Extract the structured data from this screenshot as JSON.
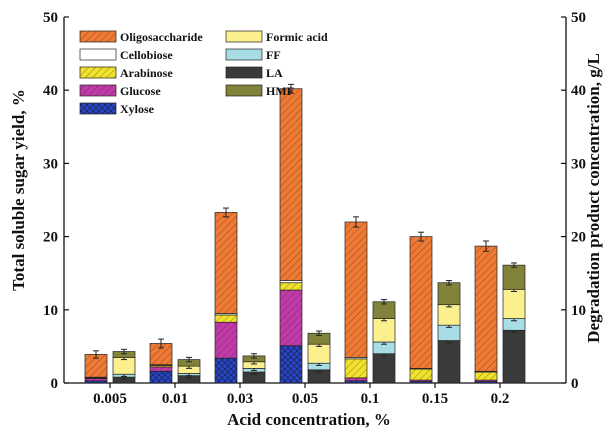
{
  "chart_data": {
    "type": "bar",
    "subtype": "stacked-grouped",
    "xlabel": "Acid concentration, %",
    "ylabel_left": "Total soluble sugar yield, %",
    "ylabel_right": "Degradation product concentration, g/L",
    "ylim_left": [
      0,
      50
    ],
    "ylim_right": [
      0,
      50
    ],
    "y_ticks": [
      "0",
      "10",
      "20",
      "30",
      "40",
      "50"
    ],
    "categories": [
      "0.005",
      "0.01",
      "0.03",
      "0.05",
      "0.1",
      "0.15",
      "0.2"
    ],
    "legend_placement": "top-left",
    "sugar_series": [
      {
        "name": "Xylose",
        "color": "#2846c8",
        "pattern": "crosshatch",
        "values": [
          0.3,
          1.6,
          3.4,
          5.1,
          0.3,
          0.2,
          0.2
        ]
      },
      {
        "name": "Glucose",
        "color": "#c23aa8",
        "pattern": "diagonal",
        "values": [
          0.3,
          0.6,
          4.9,
          7.6,
          0.4,
          0.2,
          0.2
        ]
      },
      {
        "name": "Arabinose",
        "color": "#f2e22b",
        "pattern": "diagonal",
        "values": [
          0.1,
          0.2,
          1.0,
          1.0,
          2.6,
          1.5,
          1.1
        ]
      },
      {
        "name": "Cellobiose",
        "color": "#ffffff",
        "pattern": "none",
        "values": [
          0.1,
          0.1,
          0.2,
          0.3,
          0.2,
          0.1,
          0.1
        ]
      },
      {
        "name": "Oligosaccharide",
        "color": "#f07a33",
        "pattern": "diagonal",
        "values": [
          3.1,
          2.9,
          13.8,
          26.2,
          18.5,
          18.0,
          17.1
        ]
      }
    ],
    "sugar_error": [
      0.5,
      0.6,
      0.6,
      0.6,
      0.7,
      0.6,
      0.7
    ],
    "degradation_series": [
      {
        "name": "LA",
        "color": "#3a3a3a",
        "values": [
          0.8,
          1.0,
          1.5,
          1.8,
          4.0,
          5.8,
          7.2
        ]
      },
      {
        "name": "FF",
        "color": "#a8dde6",
        "values": [
          0.4,
          0.3,
          0.5,
          0.9,
          1.6,
          2.1,
          1.6
        ]
      },
      {
        "name": "Formic acid",
        "color": "#fbef8e",
        "values": [
          2.3,
          1.0,
          0.9,
          2.6,
          3.2,
          2.8,
          4.0
        ]
      },
      {
        "name": "HMF",
        "color": "#82833a",
        "values": [
          0.8,
          0.9,
          0.8,
          1.5,
          2.3,
          3.0,
          3.3
        ]
      }
    ],
    "degradation_error": [
      0.3,
      0.3,
      0.3,
      0.3,
      0.3,
      0.3,
      0.3
    ],
    "legend": [
      {
        "name": "Oligosaccharide",
        "color": "#f07a33",
        "pattern": "diagonal"
      },
      {
        "name": "Cellobiose",
        "color": "#ffffff",
        "pattern": "none"
      },
      {
        "name": "Arabinose",
        "color": "#f2e22b",
        "pattern": "diagonal"
      },
      {
        "name": "Glucose",
        "color": "#c23aa8",
        "pattern": "diagonal"
      },
      {
        "name": "Xylose",
        "color": "#2846c8",
        "pattern": "crosshatch"
      },
      {
        "name": "Formic acid",
        "color": "#fbef8e",
        "pattern": "none"
      },
      {
        "name": "FF",
        "color": "#a8dde6",
        "pattern": "none"
      },
      {
        "name": "LA",
        "color": "#3a3a3a",
        "pattern": "none"
      },
      {
        "name": "HMF",
        "color": "#82833a",
        "pattern": "none"
      }
    ]
  }
}
